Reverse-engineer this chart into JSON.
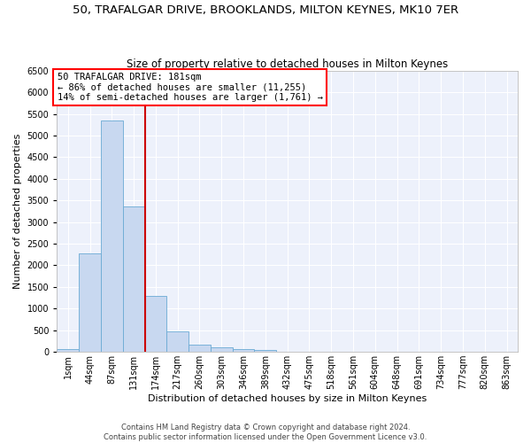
{
  "title": "50, TRAFALGAR DRIVE, BROOKLANDS, MILTON KEYNES, MK10 7ER",
  "subtitle": "Size of property relative to detached houses in Milton Keynes",
  "xlabel": "Distribution of detached houses by size in Milton Keynes",
  "ylabel": "Number of detached properties",
  "footer_line1": "Contains HM Land Registry data © Crown copyright and database right 2024.",
  "footer_line2": "Contains public sector information licensed under the Open Government Licence v3.0.",
  "bar_labels": [
    "1sqm",
    "44sqm",
    "87sqm",
    "131sqm",
    "174sqm",
    "217sqm",
    "260sqm",
    "303sqm",
    "346sqm",
    "389sqm",
    "432sqm",
    "475sqm",
    "518sqm",
    "561sqm",
    "604sqm",
    "648sqm",
    "691sqm",
    "734sqm",
    "777sqm",
    "820sqm",
    "863sqm"
  ],
  "bar_values": [
    75,
    2280,
    5350,
    3370,
    1290,
    480,
    160,
    100,
    75,
    45,
    0,
    0,
    0,
    0,
    0,
    0,
    0,
    0,
    0,
    0,
    0
  ],
  "bar_color": "#c8d8f0",
  "bar_edgecolor": "#6aaad4",
  "vline_x": 4.0,
  "vline_color": "#cc0000",
  "annotation_line1": "50 TRAFALGAR DRIVE: 181sqm",
  "annotation_line2": "← 86% of detached houses are smaller (11,255)",
  "annotation_line3": "14% of semi-detached houses are larger (1,761) →",
  "ylim_min": 0,
  "ylim_max": 6500,
  "yticks": [
    0,
    500,
    1000,
    1500,
    2000,
    2500,
    3000,
    3500,
    4000,
    4500,
    5000,
    5500,
    6000,
    6500
  ],
  "background_color": "#edf1fb",
  "grid_color": "#ffffff",
  "title_fontsize": 9.5,
  "subtitle_fontsize": 8.5,
  "axis_label_fontsize": 8,
  "tick_fontsize": 7,
  "annotation_fontsize": 7.5,
  "footer_fontsize": 6
}
